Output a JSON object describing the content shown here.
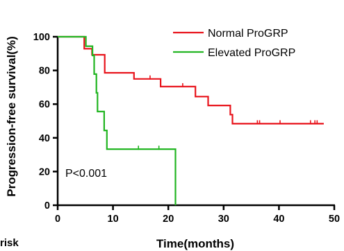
{
  "chart_data": {
    "type": "line",
    "subtype": "kaplan-meier",
    "xlabel": "Time(months)",
    "ylabel": "Progression-free survival(%)",
    "xlim": [
      0,
      50
    ],
    "ylim": [
      0,
      100
    ],
    "xticks": [
      0,
      10,
      20,
      30,
      40,
      50
    ],
    "yticks": [
      0,
      20,
      40,
      60,
      80,
      100
    ],
    "grid": false,
    "legend_position": "top-right",
    "annotation": "P<0.001",
    "cut_off_text": "risk",
    "series": [
      {
        "name": "Normal ProGRP",
        "color": "#e8131b",
        "steps": [
          [
            0,
            100
          ],
          [
            4.8,
            100
          ],
          [
            4.8,
            92.9
          ],
          [
            6.2,
            92.9
          ],
          [
            6.2,
            89.3
          ],
          [
            8.5,
            89.3
          ],
          [
            8.5,
            78.6
          ],
          [
            13.8,
            78.6
          ],
          [
            13.8,
            75
          ],
          [
            18.6,
            75
          ],
          [
            18.6,
            70.4
          ],
          [
            24.9,
            70.4
          ],
          [
            24.9,
            64.5
          ],
          [
            27.2,
            64.5
          ],
          [
            27.2,
            59.2
          ],
          [
            31.2,
            59.2
          ],
          [
            31.2,
            53.8
          ],
          [
            31.6,
            53.8
          ],
          [
            31.6,
            48.4
          ],
          [
            48.1,
            48.4
          ]
        ],
        "censored": [
          [
            16.7,
            75
          ],
          [
            22.6,
            70.4
          ],
          [
            36.1,
            48.4
          ],
          [
            36.5,
            48.4
          ],
          [
            40.2,
            48.4
          ],
          [
            45.7,
            48.4
          ],
          [
            46.5,
            48.4
          ],
          [
            46.9,
            48.4
          ]
        ]
      },
      {
        "name": "Elevated ProGRP",
        "color": "#21b521",
        "steps": [
          [
            0,
            100
          ],
          [
            5.1,
            100
          ],
          [
            5.1,
            94.4
          ],
          [
            6.3,
            94.4
          ],
          [
            6.3,
            88.9
          ],
          [
            6.6,
            88.9
          ],
          [
            6.6,
            77.8
          ],
          [
            7,
            77.8
          ],
          [
            7,
            66.7
          ],
          [
            7.2,
            66.7
          ],
          [
            7.2,
            55.6
          ],
          [
            8.4,
            55.6
          ],
          [
            8.4,
            44.4
          ],
          [
            8.9,
            44.4
          ],
          [
            8.9,
            33.3
          ],
          [
            21.3,
            33.3
          ],
          [
            21.3,
            0
          ]
        ],
        "censored": [
          [
            14.6,
            33.3
          ],
          [
            18.3,
            33.3
          ]
        ]
      }
    ]
  }
}
